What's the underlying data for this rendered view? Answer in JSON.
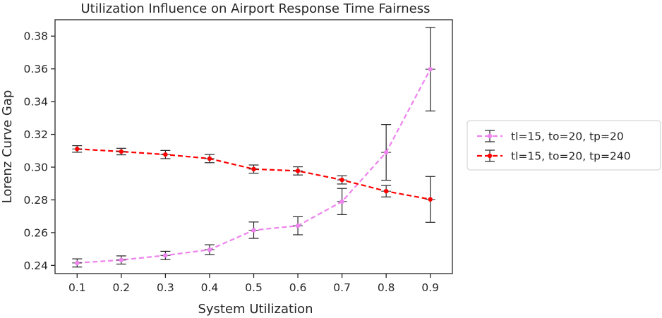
{
  "chart_data": {
    "type": "line",
    "title": "Utilization Influence on Airport Response Time Fairness",
    "xlabel": "System Utilization",
    "ylabel": "Lorenz Curve Gap",
    "xlim": [
      0.05,
      0.95
    ],
    "ylim": [
      0.235,
      0.39
    ],
    "x_ticks": [
      "0.1",
      "0.2",
      "0.3",
      "0.4",
      "0.5",
      "0.6",
      "0.7",
      "0.8",
      "0.9"
    ],
    "y_ticks": [
      "0.24",
      "0.26",
      "0.28",
      "0.30",
      "0.32",
      "0.34",
      "0.36",
      "0.38"
    ],
    "grid": false,
    "legend_position": "right, outside",
    "series": [
      {
        "name": "tl=15, to=20, tp=20",
        "color": "#ee82ee",
        "marker": "circle",
        "line_style": "dashed",
        "x": [
          0.1,
          0.2,
          0.3,
          0.4,
          0.5,
          0.6,
          0.7,
          0.8,
          0.9
        ],
        "y": [
          0.2415,
          0.2433,
          0.2461,
          0.2496,
          0.2615,
          0.2642,
          0.279,
          0.309,
          0.3598
        ],
        "err": [
          0.0025,
          0.0025,
          0.0025,
          0.003,
          0.005,
          0.0055,
          0.008,
          0.017,
          0.0255
        ]
      },
      {
        "name": "tl=15, to=20, tp=240",
        "color": "#ff0000",
        "marker": "circle",
        "line_style": "dashed",
        "x": [
          0.1,
          0.2,
          0.3,
          0.4,
          0.5,
          0.6,
          0.7,
          0.8,
          0.9
        ],
        "y": [
          0.3111,
          0.3095,
          0.3077,
          0.3052,
          0.2988,
          0.2977,
          0.2922,
          0.2853,
          0.2803
        ],
        "err": [
          0.002,
          0.002,
          0.0025,
          0.0025,
          0.0025,
          0.0025,
          0.0025,
          0.0035,
          0.014
        ]
      }
    ]
  }
}
